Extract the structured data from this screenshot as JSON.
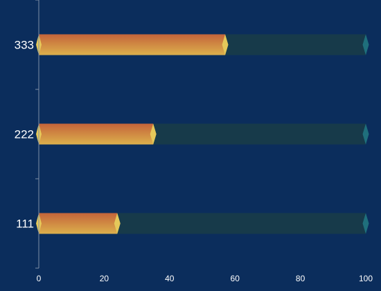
{
  "chart_data": {
    "type": "bar",
    "orientation": "horizontal",
    "categories": [
      "333",
      "222",
      "111"
    ],
    "values": [
      57,
      35,
      24
    ],
    "max": 100,
    "xlim": [
      0,
      100
    ],
    "x_ticks": [
      "0",
      "20",
      "40",
      "60",
      "80",
      "100"
    ],
    "grid": false,
    "legend": "none",
    "colors": {
      "background": "#0b2d5c",
      "track": "#173a4a",
      "bar_left": "#c8653a",
      "bar_right": "#d8aa48",
      "bar_cap": "#e5c85a",
      "track_cap": "#1f6f7c",
      "axis": "#7f8fa6",
      "text": "#ffffff"
    }
  }
}
